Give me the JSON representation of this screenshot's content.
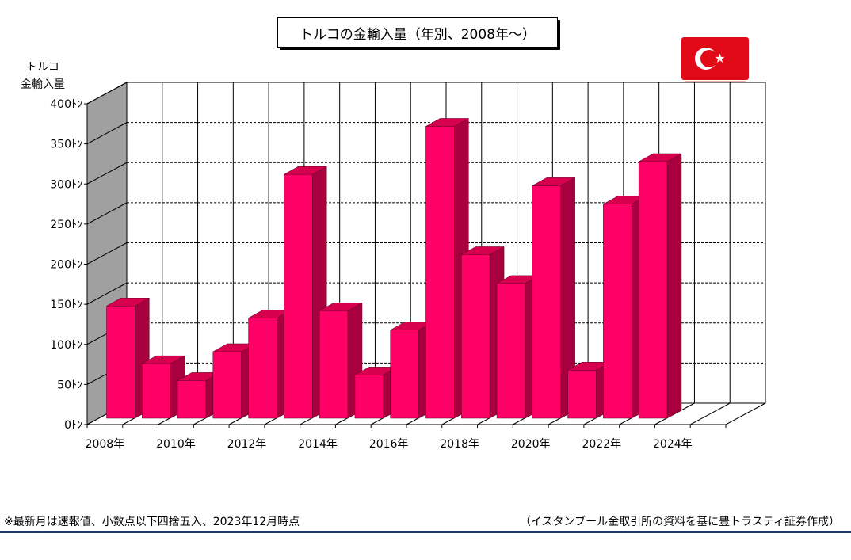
{
  "title": "トルコの金輸入量（年別、2008年～）",
  "y_axis_label": [
    "トルコ",
    "金輸入量"
  ],
  "footnote_left": "※最新月は速報値、小数点以下四捨五入、2023年12月時点",
  "footnote_right": "（イスタンブール金取引所の資料を基に豊トラスティ証券作成）",
  "flag": {
    "name": "turkey-flag-icon",
    "color": "#e30a17"
  },
  "colors": {
    "bar_front": "#ff0066",
    "bar_side": "#a8003f",
    "bar_top": "#d6004f",
    "back_wall": "#a0a0a0"
  },
  "chart_data": {
    "type": "bar",
    "categories": [
      "2008",
      "2009",
      "2010",
      "2011",
      "2012",
      "2013",
      "2014",
      "2015",
      "2016",
      "2017",
      "2018",
      "2019",
      "2020",
      "2021",
      "2022",
      "2023",
      "2024",
      "2025"
    ],
    "values": [
      140,
      68,
      47,
      83,
      125,
      304,
      134,
      54,
      110,
      364,
      204,
      168,
      290,
      60,
      267,
      320,
      null,
      null
    ],
    "x_tick_labels": [
      "2008年",
      "2010年",
      "2012年",
      "2014年",
      "2016年",
      "2018年",
      "2020年",
      "2022年",
      "2024年"
    ],
    "y_ticks": [
      0,
      50,
      100,
      150,
      200,
      250,
      300,
      350,
      400
    ],
    "y_tick_labels": [
      "0ﾄﾝ",
      "50ﾄﾝ",
      "100ﾄﾝ",
      "150ﾄﾝ",
      "200ﾄﾝ",
      "250ﾄﾝ",
      "300ﾄﾝ",
      "350ﾄﾝ",
      "400ﾄﾝ"
    ],
    "ylim": [
      0,
      400
    ],
    "grid": true,
    "three_d": true
  }
}
